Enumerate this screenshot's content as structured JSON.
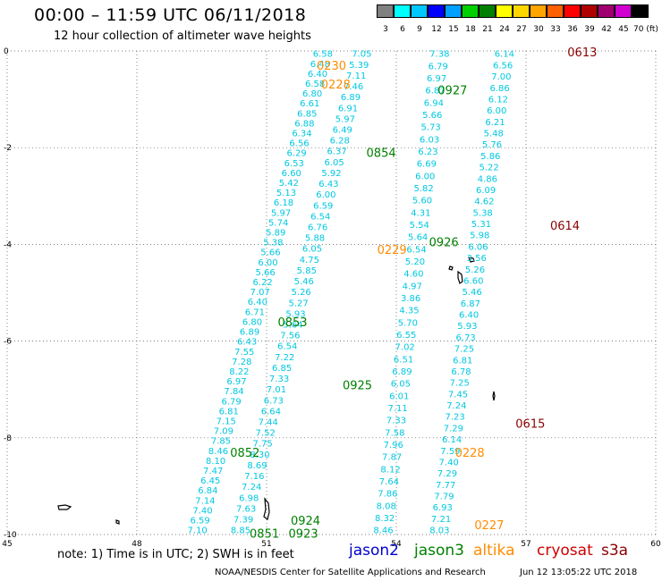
{
  "title": "00:00 – 11:59 UTC 06/11/2018",
  "subtitle": "12 hour collection of altimeter wave heights",
  "colorbar": {
    "labels": [
      "3",
      "6",
      "9",
      "12",
      "15",
      "18",
      "21",
      "24",
      "27",
      "30",
      "33",
      "36",
      "39",
      "42",
      "45",
      "70 (ft)"
    ],
    "colors": [
      "#808080",
      "#00ffff",
      "#00c8ff",
      "#0000ff",
      "#00a0ff",
      "#00d000",
      "#008000",
      "#ffff00",
      "#ffd700",
      "#ffa500",
      "#ff6000",
      "#ff0000",
      "#b00000",
      "#a00070",
      "#d000d0",
      "#000000"
    ]
  },
  "axes": {
    "x_ticks": [
      "45",
      "48",
      "51",
      "54",
      "57",
      "60"
    ],
    "y_ticks": [
      "0",
      "-2",
      "-4",
      "-6",
      "-8",
      "-10"
    ],
    "xlim": [
      45,
      60
    ],
    "ylim": [
      -10,
      0
    ]
  },
  "satellite_colors": {
    "jason2": "#0000cc",
    "jason3": "#008000",
    "altika": "#ff8c00",
    "cryosat": "#cc0000",
    "s3a": "#8b0000",
    "swh": "#00c8e0"
  },
  "pass_labels": [
    {
      "text": "0613",
      "lon": 58.3,
      "lat": -0.02,
      "sat": "s3a"
    },
    {
      "text": "0230",
      "lon": 52.5,
      "lat": -0.3,
      "sat": "altika"
    },
    {
      "text": "0228",
      "lon": 52.6,
      "lat": -0.68,
      "sat": "altika"
    },
    {
      "text": "0927",
      "lon": 55.3,
      "lat": -0.8,
      "sat": "jason3"
    },
    {
      "text": "0854",
      "lon": 53.65,
      "lat": -2.1,
      "sat": "jason3"
    },
    {
      "text": "0614",
      "lon": 57.9,
      "lat": -3.6,
      "sat": "s3a"
    },
    {
      "text": "0926",
      "lon": 55.1,
      "lat": -3.95,
      "sat": "jason3"
    },
    {
      "text": "0229",
      "lon": 53.9,
      "lat": -4.1,
      "sat": "altika"
    },
    {
      "text": "0853",
      "lon": 51.6,
      "lat": -5.6,
      "sat": "jason3"
    },
    {
      "text": "0925",
      "lon": 53.1,
      "lat": -6.9,
      "sat": "jason3"
    },
    {
      "text": "0615",
      "lon": 57.1,
      "lat": -7.7,
      "sat": "s3a"
    },
    {
      "text": "0228",
      "lon": 55.7,
      "lat": -8.3,
      "sat": "altika"
    },
    {
      "text": "0852",
      "lon": 50.5,
      "lat": -8.3,
      "sat": "jason3"
    },
    {
      "text": "0924",
      "lon": 51.9,
      "lat": -9.7,
      "sat": "jason3"
    },
    {
      "text": "0227",
      "lon": 56.15,
      "lat": -9.8,
      "sat": "altika"
    },
    {
      "text": "0851",
      "lon": 50.95,
      "lat": -9.97,
      "sat": "jason3"
    },
    {
      "text": "0923",
      "lon": 51.85,
      "lat": -9.97,
      "sat": "jason3"
    }
  ],
  "swh_tracks": [
    {
      "name": "a",
      "lon_top": 52.3,
      "lon_bot": 49.4,
      "values": [
        "6.58",
        "6.48",
        "6.40",
        "6.58",
        "6.80",
        "6.61",
        "6.85",
        "6.88",
        "6.34",
        "6.56",
        "6.29",
        "6.53",
        "6.60",
        "5.42",
        "5.13",
        "6.18",
        "5.97",
        "5.74",
        "5.89",
        "5.38",
        "5.66",
        "6.00",
        "5.66",
        "6.22",
        "7.07",
        "6.40",
        "6.71",
        "6.80",
        "6.89",
        "6.43",
        "7.55",
        "7.28",
        "8.22",
        "6.97",
        "7.84",
        "6.79",
        "6.81",
        "7.15",
        "7.09",
        "7.85",
        "8.46",
        "8.10",
        "7.47",
        "6.45",
        "6.84",
        "7.14",
        "7.40",
        "6.59",
        "7.10"
      ]
    },
    {
      "name": "b",
      "lon_top": 53.2,
      "lon_bot": 50.4,
      "values": [
        "7.05",
        "5.39",
        "7.11",
        "7.46",
        "6.89",
        "6.91",
        "5.97",
        "6.49",
        "6.28",
        "6.37",
        "6.05",
        "5.92",
        "6.43",
        "6.00",
        "6.59",
        "6.54",
        "6.76",
        "5.88",
        "6.05",
        "4.75",
        "5.85",
        "5.46",
        "5.26",
        "5.27",
        "5.93",
        "5.64",
        "7.56",
        "6.54",
        "7.22",
        "6.85",
        "7.33",
        "7.01",
        "6.73",
        "6.64",
        "7.44",
        "7.52",
        "7.75",
        "8.30",
        "8.69",
        "7.16",
        "7.24",
        "6.98",
        "7.63",
        "7.39",
        "8.85"
      ]
    },
    {
      "name": "c",
      "lon_top": 55.0,
      "lon_bot": 53.7,
      "values": [
        "7.38",
        "6.79",
        "6.97",
        "6.87",
        "6.94",
        "5.66",
        "5.73",
        "6.03",
        "6.23",
        "6.69",
        "6.00",
        "5.82",
        "5.60",
        "4.31",
        "5.54",
        "5.64",
        "6.54",
        "5.20",
        "4.60",
        "4.97",
        "3.86",
        "4.35",
        "5.70",
        "6.55",
        "7.02",
        "6.51",
        "6.89",
        "6.05",
        "6.01",
        "7.11",
        "7.33",
        "7.58",
        "7.96",
        "7.87",
        "8.12",
        "7.64",
        "7.86",
        "8.08",
        "8.32",
        "8.46"
      ]
    },
    {
      "name": "d",
      "lon_top": 56.5,
      "lon_bot": 55.0,
      "values": [
        "6.14",
        "6.56",
        "7.00",
        "6.86",
        "6.12",
        "6.00",
        "6.21",
        "5.48",
        "5.76",
        "5.86",
        "5.22",
        "4.86",
        "6.09",
        "4.62",
        "5.38",
        "5.31",
        "5.98",
        "6.06",
        "3.56",
        "5.26",
        "6.60",
        "5.46",
        "6.87",
        "6.40",
        "5.93",
        "6.73",
        "7.25",
        "6.81",
        "6.78",
        "7.25",
        "7.45",
        "7.24",
        "7.23",
        "7.29",
        "6.14",
        "7.59",
        "7.40",
        "7.29",
        "7.77",
        "7.79",
        "6.93",
        "7.21",
        "8.03"
      ]
    }
  ],
  "note_text": "note:  1) Time is in UTC;  2) SWH is in feet",
  "legend": [
    {
      "label": "jason2",
      "sat": "jason2"
    },
    {
      "label": "jason3",
      "sat": "jason3"
    },
    {
      "label": "altika",
      "sat": "altika"
    },
    {
      "label": "cryosat",
      "sat": "cryosat"
    },
    {
      "label": "s3a",
      "sat": "s3a"
    }
  ],
  "footer_org": "NOAA/NESDIS Center for Satellite Applications and Research",
  "footer_time": "Jun 12 13:05:22 UTC 2018"
}
